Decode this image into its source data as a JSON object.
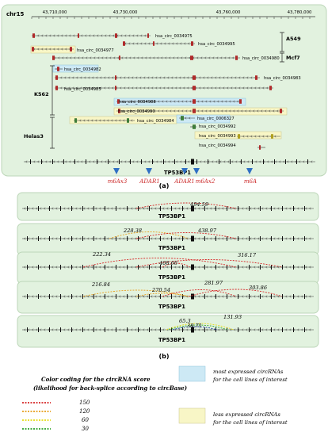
{
  "panel_a": {
    "chrom": "chr15",
    "coords": [
      "43,710,000",
      "43,730,000",
      "43,760,000",
      "43,780,000"
    ],
    "circs": [
      {
        "label": "hsa_circ_0034975",
        "highlight": "none"
      },
      {
        "label": "hsa_circ_0034995",
        "highlight": "none"
      },
      {
        "label": "hsa_circ_0034977",
        "highlight": "yellow"
      },
      {
        "label": "hsa_circ_0034980",
        "highlight": "none"
      },
      {
        "label": "hsa_circ_0034982",
        "highlight": "blue"
      },
      {
        "label": "hsa_circ_0034983",
        "highlight": "none"
      },
      {
        "label": "hsa_circ_0034985",
        "highlight": "none"
      },
      {
        "label": "hsa_circ_0034988",
        "highlight": "blue"
      },
      {
        "label": "hsa_circ_0034990",
        "highlight": "yellow"
      },
      {
        "label": "hsa_circ_0034984",
        "highlight": "yellow"
      },
      {
        "label": "hsa_circ_0006327",
        "highlight": "blue"
      },
      {
        "label": "hsa_circ_0034992",
        "highlight": "none"
      },
      {
        "label": "hsa_circ_0034993",
        "highlight": "yellow"
      },
      {
        "label": "hsa_circ_0034994",
        "highlight": "none"
      }
    ],
    "cell_lines": [
      "A549",
      "Mcf7",
      "K562",
      "Helas3"
    ],
    "gene": "TP53BP1",
    "sites": [
      "m6Ax3",
      "ADAR1",
      "ADAR1",
      "m6Ax2",
      "m6A"
    ],
    "caption": "(a)"
  },
  "panel_b": {
    "gene": "TP53BP1",
    "caption": "(b)",
    "arc_labels": [
      [
        "494.59"
      ],
      [
        "228.38",
        "438.97"
      ],
      [
        "222.34",
        "408.66",
        "316.17"
      ],
      [
        "216.84",
        "270.54",
        "281.97",
        "303.86"
      ],
      [
        "65.3",
        "38.71",
        "131.93"
      ]
    ]
  },
  "legend": {
    "title": "Color coding for the circRNA score",
    "subtitle": "(likelihood for back-splice according to circBase)",
    "entries": [
      {
        "score": "150",
        "color": "#d62728"
      },
      {
        "score": "120",
        "color": "#e8a020"
      },
      {
        "score": "60",
        "color": "#e8dc1a"
      },
      {
        "score": "30",
        "color": "#2ca02c"
      }
    ],
    "most": {
      "line1": "most expressed circRNAs",
      "line2": "for the cell lines of interest",
      "color": "#cde9f5"
    },
    "less": {
      "line1": "less expressed circRNAs",
      "line2": "for the cell lines of interest",
      "color": "#f8f6c6"
    }
  },
  "colors": {
    "panel_bg": "#e2f2df",
    "panel_stroke": "#bcd6b8",
    "site_red": "#cc2a2a",
    "site_blue": "#2f6fc4",
    "exon_red": "#b02a2a",
    "green_block": "#3e7d3a"
  }
}
